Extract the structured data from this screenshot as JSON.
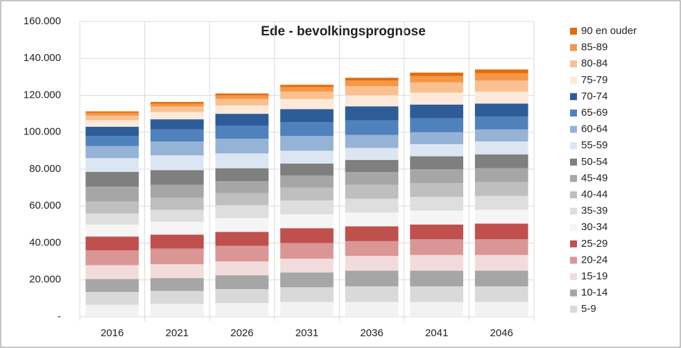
{
  "chart_data": {
    "type": "stacked_bar",
    "title": "Ede - bevolkingsprognose",
    "categories": [
      "2016",
      "2021",
      "2026",
      "2031",
      "2036",
      "2041",
      "2046"
    ],
    "ylim": [
      0,
      160000
    ],
    "yticks": [
      {
        "value": 0,
        "label": "-"
      },
      {
        "value": 20000,
        "label": "20.000"
      },
      {
        "value": 40000,
        "label": "40.000"
      },
      {
        "value": 60000,
        "label": "60.000"
      },
      {
        "value": 80000,
        "label": "80.000"
      },
      {
        "value": 100000,
        "label": "100.000"
      },
      {
        "value": 120000,
        "label": "120.000"
      },
      {
        "value": 140000,
        "label": "140.000"
      },
      {
        "value": 160000,
        "label": "160.000"
      }
    ],
    "grid": true,
    "legend": "right",
    "series": [
      {
        "color": "#f2f2f2",
        "values": [
          6500,
          7000,
          7500,
          8000,
          8000,
          8000,
          8000
        ]
      },
      {
        "name": "5-9",
        "color": "#d9d9d9",
        "values": [
          7000,
          7000,
          7500,
          8000,
          8500,
          8500,
          8500
        ]
      },
      {
        "name": "10-14",
        "color": "#a6a6a6",
        "values": [
          7000,
          7000,
          7500,
          8000,
          8500,
          8500,
          8500
        ]
      },
      {
        "name": "15-19",
        "color": "#f2dcdb",
        "values": [
          7500,
          7500,
          7500,
          7500,
          8000,
          8500,
          8500
        ]
      },
      {
        "name": "20-24",
        "color": "#da9694",
        "values": [
          8000,
          8500,
          8500,
          8500,
          8000,
          8500,
          8500
        ]
      },
      {
        "name": "25-29",
        "color": "#c0504d",
        "values": [
          7500,
          7500,
          7500,
          8000,
          8000,
          8000,
          8500
        ]
      },
      {
        "name": "30-34",
        "color": "#f5f5f5",
        "values": [
          6500,
          7000,
          7500,
          7500,
          7500,
          7500,
          7500
        ]
      },
      {
        "name": "35-39",
        "color": "#dedede",
        "values": [
          6000,
          6500,
          7000,
          7500,
          7500,
          7500,
          7500
        ]
      },
      {
        "name": "40-44",
        "color": "#bfbfbf",
        "values": [
          6500,
          6500,
          6500,
          7000,
          7500,
          7500,
          7500
        ]
      },
      {
        "name": "45-49",
        "color": "#a6a6a6",
        "values": [
          8000,
          7000,
          6500,
          6500,
          7000,
          7500,
          7500
        ]
      },
      {
        "name": "50-54",
        "color": "#7f7f7f",
        "values": [
          8000,
          8000,
          7000,
          6500,
          6500,
          7000,
          7500
        ]
      },
      {
        "name": "55-59",
        "color": "#dce6f2",
        "values": [
          7500,
          8000,
          8000,
          7000,
          6500,
          6500,
          7000
        ]
      },
      {
        "name": "60-64",
        "color": "#95b3d7",
        "values": [
          6500,
          7500,
          8000,
          8000,
          7000,
          6500,
          6500
        ]
      },
      {
        "name": "65-69",
        "color": "#4f81bd",
        "values": [
          5500,
          6500,
          7000,
          7500,
          8000,
          7500,
          7000
        ]
      },
      {
        "name": "70-74",
        "color": "#2e5c99",
        "values": [
          5000,
          5500,
          6500,
          7000,
          7500,
          7500,
          7000
        ]
      },
      {
        "name": "75-79",
        "color": "#fde9d9",
        "values": [
          3500,
          4000,
          4500,
          5500,
          6000,
          6500,
          6500
        ]
      },
      {
        "name": "80-84",
        "color": "#fac090",
        "values": [
          2500,
          3000,
          3500,
          4000,
          5000,
          5500,
          6000
        ]
      },
      {
        "name": "85-89",
        "color": "#f79646",
        "values": [
          1500,
          1500,
          2000,
          2500,
          3000,
          3500,
          4000
        ]
      },
      {
        "name": "90 en ouder",
        "color": "#e36c09",
        "values": [
          800,
          900,
          1000,
          1200,
          1500,
          1800,
          2000
        ]
      }
    ]
  }
}
